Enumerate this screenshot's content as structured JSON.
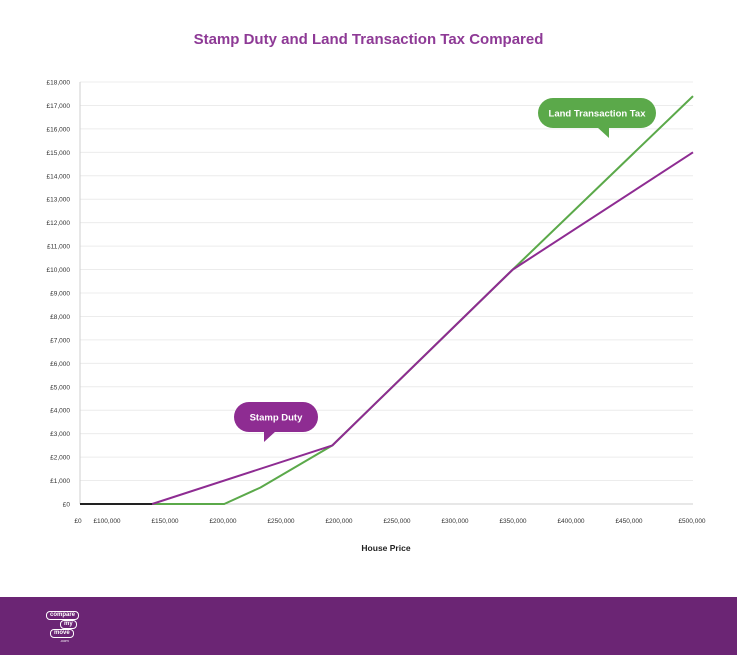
{
  "chart_data": {
    "type": "line",
    "title": "Stamp Duty and Land Transaction Tax Compared",
    "xlabel": "House Price",
    "ylabel": "",
    "x_ticks": [
      "£0",
      "£100,000",
      "£150,000",
      "£200,000",
      "£250,000",
      "£200,000",
      "£250,000",
      "£300,000",
      "£350,000",
      "£400,000",
      "£450,000",
      "£500,000"
    ],
    "y_ticks": [
      "£0",
      "£1,000",
      "£2,000",
      "£3,000",
      "£4,000",
      "£5,000",
      "£6,000",
      "£7,000",
      "£8,000",
      "£9,000",
      "£10,000",
      "£11,000",
      "£12,000",
      "£13,000",
      "£14,000",
      "£15,000",
      "£16,000",
      "£17,000",
      "£18,000"
    ],
    "xlim": [
      75000,
      500000
    ],
    "ylim": [
      0,
      18000
    ],
    "grid": true,
    "series": [
      {
        "name": "Stamp Duty",
        "color": "#8e2c92",
        "x": [
          75000,
          125000,
          250000,
          375000,
          500000
        ],
        "y": [
          0,
          0,
          2500,
          10000,
          15000
        ]
      },
      {
        "name": "Land Transaction Tax",
        "color": "#5ba94a",
        "x": [
          75000,
          125000,
          175000,
          200000,
          250000,
          375000,
          500000
        ],
        "y": [
          0,
          0,
          0,
          700,
          2500,
          10000,
          17400
        ]
      }
    ],
    "annotations": [
      {
        "text": "Stamp Duty",
        "color": "#8e2c92"
      },
      {
        "text": "Land Transaction Tax",
        "color": "#5ba94a"
      }
    ]
  },
  "footer": {
    "logo": {
      "line1": "compare",
      "line2": "my",
      "line3": "move",
      "line4": ".com"
    }
  }
}
